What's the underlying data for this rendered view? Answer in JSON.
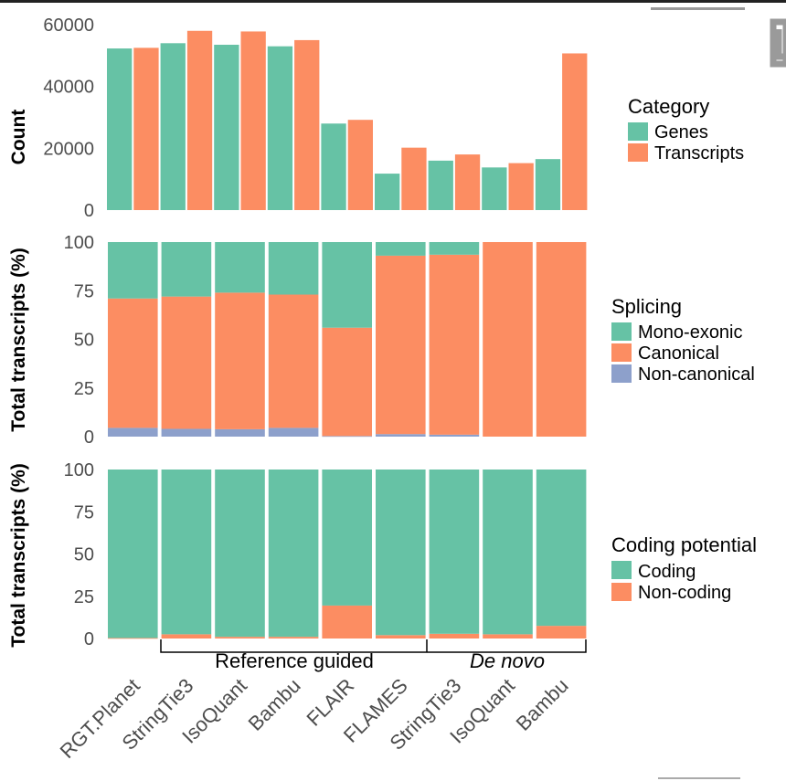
{
  "colors": {
    "genes": "#66c2a5",
    "transcripts": "#fc8d62",
    "mono_exonic": "#66c2a5",
    "canonical": "#fc8d62",
    "non_canonical": "#8da0cb",
    "coding": "#66c2a5",
    "non_coding": "#fc8d62"
  },
  "chart_data": [
    {
      "type": "bar",
      "ylabel": "Count",
      "ylim": [
        0,
        60000
      ],
      "yticks": [
        "0",
        "20000",
        "40000",
        "60000"
      ],
      "categories": [
        "RGT.Planet",
        "StringTie3",
        "IsoQuant",
        "Bambu",
        "FLAIR",
        "FLAMES",
        "StringTie3",
        "IsoQuant",
        "Bambu"
      ],
      "legend_title": "Category",
      "legend_position": "right",
      "series": [
        {
          "name": "Genes",
          "values": [
            52300,
            54000,
            53500,
            53000,
            28000,
            11800,
            16000,
            13800,
            16500
          ]
        },
        {
          "name": "Transcripts",
          "values": [
            52500,
            58000,
            57800,
            55000,
            29200,
            20200,
            18000,
            15200,
            50700
          ]
        }
      ]
    },
    {
      "type": "bar",
      "stacked": true,
      "ylabel": "Total transcripts (%)",
      "ylim": [
        0,
        100
      ],
      "yticks": [
        "0",
        "25",
        "50",
        "75",
        "100"
      ],
      "legend_title": "Splicing",
      "legend_position": "right",
      "series": [
        {
          "name": "Mono-exonic",
          "values": [
            29,
            28,
            26,
            27,
            44,
            7,
            6.5,
            0,
            0
          ]
        },
        {
          "name": "Canonical",
          "values": [
            66.5,
            68,
            70.2,
            68.5,
            55.7,
            91.7,
            92.5,
            100,
            100
          ]
        },
        {
          "name": "Non-canonical",
          "values": [
            4.5,
            4,
            3.8,
            4.5,
            0.3,
            1.3,
            1,
            0,
            0
          ]
        }
      ]
    },
    {
      "type": "bar",
      "stacked": true,
      "ylabel": "Total transcripts (%)",
      "ylim": [
        0,
        100
      ],
      "yticks": [
        "0",
        "25",
        "50",
        "75",
        "100"
      ],
      "legend_title": "Coding potential",
      "legend_position": "right",
      "series": [
        {
          "name": "Coding",
          "values": [
            99.7,
            97.5,
            99,
            99,
            80.5,
            98,
            97.2,
            97.5,
            92.5
          ]
        },
        {
          "name": "Non-coding",
          "values": [
            0.3,
            2.5,
            1,
            1,
            19.5,
            2,
            2.8,
            2.5,
            7.5
          ]
        }
      ]
    }
  ],
  "groups": [
    {
      "label": "Reference guided",
      "italic": false
    },
    {
      "label": "De novo",
      "italic": true
    }
  ]
}
